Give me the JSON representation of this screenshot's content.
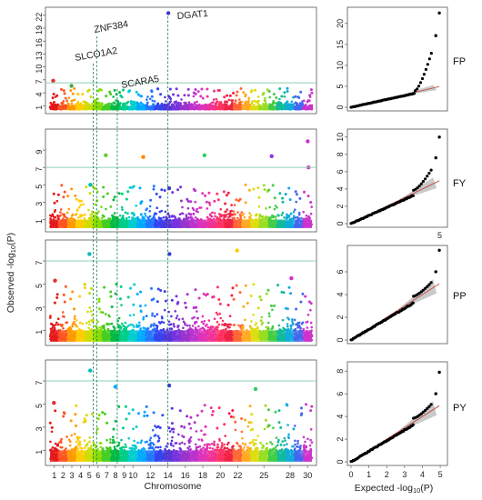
{
  "chart_data": [
    {
      "type": "scatter",
      "subtype": "manhattan",
      "trait": "FP",
      "ylabel": "Observed -log10(P)",
      "xlabel": "Chromosome",
      "ylim": [
        0,
        23
      ],
      "yticks": [
        1,
        4,
        7,
        10,
        13,
        16,
        19,
        22
      ],
      "threshold": 6.3,
      "peaks": [
        {
          "chromosome": 14,
          "value": 22.5,
          "color": "#3a3ad0"
        },
        {
          "chromosome": 1,
          "value": 6.8,
          "color": "#e03030"
        },
        {
          "chromosome": 3,
          "value": 5.6,
          "color": "#44aa44"
        }
      ],
      "gene_labels": [
        "ZNF384",
        "SLCO1A2",
        "SCARA5",
        "DGAT1"
      ]
    },
    {
      "type": "scatter",
      "subtype": "manhattan",
      "trait": "FY",
      "ylabel": "Observed -log10(P)",
      "xlabel": "Chromosome",
      "ylim": [
        0,
        11
      ],
      "yticks": [
        1,
        3,
        5,
        7,
        9
      ],
      "threshold": 7.0,
      "peaks": [
        {
          "chromosome": 30,
          "value": 10.0,
          "color": "#cc33cc"
        },
        {
          "chromosome": 7,
          "value": 8.4,
          "color": "#66cc33"
        },
        {
          "chromosome": 11,
          "value": 8.2,
          "color": "#ff8800"
        },
        {
          "chromosome": 18,
          "value": 8.4,
          "color": "#33cc66"
        },
        {
          "chromosome": 26,
          "value": 8.3,
          "color": "#8833ee"
        },
        {
          "chromosome": 5,
          "value": 5.0,
          "color": "#00bbbb"
        },
        {
          "chromosome": 14,
          "value": 4.6,
          "color": "#3a3ad0"
        },
        {
          "chromosome": 30,
          "value": 7.0,
          "color": "#cc33cc"
        }
      ]
    },
    {
      "type": "scatter",
      "subtype": "manhattan",
      "trait": "PP",
      "ylabel": "Observed -log10(P)",
      "xlabel": "Chromosome",
      "ylim": [
        0,
        8.5
      ],
      "yticks": [
        1,
        3,
        5,
        7
      ],
      "threshold": 7.0,
      "peaks": [
        {
          "chromosome": 5,
          "value": 7.6,
          "color": "#00bbbb"
        },
        {
          "chromosome": 14,
          "value": 7.6,
          "color": "#3a3ad0"
        },
        {
          "chromosome": 22,
          "value": 7.9,
          "color": "#ffcc00"
        },
        {
          "chromosome": 1,
          "value": 5.3,
          "color": "#e03030"
        },
        {
          "chromosome": 28,
          "value": 5.5,
          "color": "#cc33cc"
        }
      ]
    },
    {
      "type": "scatter",
      "subtype": "manhattan",
      "trait": "PY",
      "ylabel": "Observed -log10(P)",
      "xlabel": "Chromosome",
      "ylim": [
        0,
        8.5
      ],
      "yticks": [
        1,
        3,
        5,
        7
      ],
      "threshold": 7.0,
      "peaks": [
        {
          "chromosome": 5,
          "value": 7.9,
          "color": "#00bbbb"
        },
        {
          "chromosome": 14,
          "value": 6.6,
          "color": "#3a3ad0"
        },
        {
          "chromosome": 1,
          "value": 5.1,
          "color": "#e03030"
        },
        {
          "chromosome": 8,
          "value": 6.5,
          "color": "#00aaff"
        },
        {
          "chromosome": 24,
          "value": 6.3,
          "color": "#33cc66"
        }
      ]
    }
  ],
  "qq_data": [
    {
      "trait": "FP",
      "ylim": [
        0,
        23
      ],
      "yticks": [
        0,
        5,
        10,
        15,
        20
      ],
      "max_observed": 22.5,
      "tail_start": 3.6
    },
    {
      "trait": "FY",
      "ylim": [
        0,
        10.5
      ],
      "yticks": [
        0,
        2,
        4,
        6,
        8,
        10
      ],
      "max_observed": 10.0,
      "tail_start": 3.5
    },
    {
      "trait": "PP",
      "ylim": [
        0,
        8
      ],
      "yticks": [
        0,
        2,
        4,
        6
      ],
      "max_observed": 7.9,
      "tail_start": 3.5
    },
    {
      "trait": "PY",
      "ylim": [
        0,
        8.5
      ],
      "yticks": [
        0,
        2,
        4,
        6,
        8
      ],
      "max_observed": 7.9,
      "tail_start": 3.5,
      "xticks": [
        0,
        1,
        2,
        3,
        4,
        5
      ],
      "xlabel": "Expected -log10(P)"
    }
  ],
  "text": {
    "gene_znf384": "ZNF384",
    "gene_slco1a2": "SLCO1A2",
    "gene_scara5": "SCARA5",
    "gene_dgat1": "DGAT1",
    "ylabel_prefix": "Observed -log",
    "ylabel_suffix": "(P)",
    "log_sub": "10",
    "xlabel": "Chromosome",
    "qq_xlabel_prefix": "Expected -log",
    "qq_xlabel_suffix": "(P)",
    "trait_fp": "FP",
    "trait_fy": "FY",
    "trait_pp": "PP",
    "trait_py": "PY",
    "stray_five": "5",
    "chrom_labels": [
      "1",
      "2",
      "3",
      "4",
      "5",
      "6",
      "7",
      "8",
      "9",
      "10",
      "12",
      "14",
      "16",
      "18",
      "20",
      "22",
      "25",
      "28",
      "30"
    ],
    "chrom_label_positions": [
      1,
      2,
      3,
      4,
      5,
      6,
      7,
      8,
      9,
      10,
      12,
      14,
      16,
      18,
      20,
      22,
      25,
      28,
      30
    ]
  },
  "colors": {
    "chromosomes": [
      "#e41a1c",
      "#ff5522",
      "#ff9900",
      "#ffcc00",
      "#ccdd00",
      "#88dd00",
      "#44cc22",
      "#00bb44",
      "#00cc88",
      "#00cccc",
      "#00aaff",
      "#2277ff",
      "#3344ee",
      "#5533dd",
      "#7733dd",
      "#9933cc",
      "#bb33cc",
      "#dd33bb",
      "#ee3399",
      "#ff3366",
      "#ee2244",
      "#ff6633",
      "#ffaa22",
      "#dddd11",
      "#99dd22",
      "#44cc44",
      "#11bb99",
      "#11aadd",
      "#4466ee",
      "#cc33cc"
    ],
    "threshold": "#8fd1b4",
    "gene_line": "#1f8a5a",
    "qq_points": "#000000",
    "qq_line": "#c0504d",
    "qq_band": "#b8b8b8"
  }
}
